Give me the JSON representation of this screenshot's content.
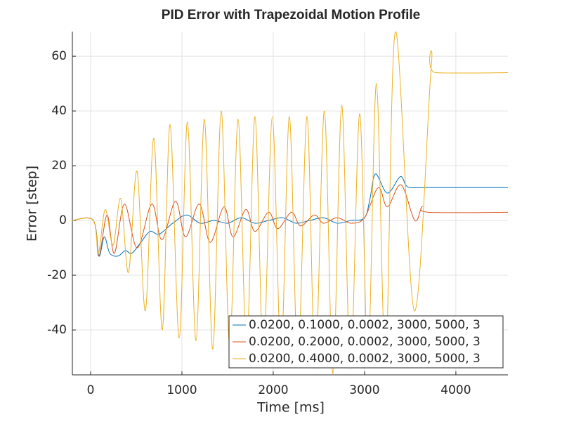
{
  "chart_data": {
    "type": "line",
    "title": "PID Error with Trapezoidal Motion Profile",
    "x_label": "Time [ms]",
    "y_label": "Error [step]",
    "xlim": [
      -200,
      4570
    ],
    "ylim": [
      -56.4,
      69
    ],
    "xticks": [
      0,
      1000,
      2000,
      3000,
      4000
    ],
    "yticks": [
      -40,
      -20,
      0,
      20,
      40,
      60
    ],
    "grid": true,
    "legend": "bottom-right",
    "series": [
      {
        "name": "0.0200, 0.1000, 0.0002, 3000, 5000, 3",
        "color": "#0072bd",
        "x": [
          -200,
          30,
          90,
          150,
          210,
          300,
          380,
          450,
          550,
          650,
          750,
          900,
          1050,
          1200,
          1350,
          1500,
          1650,
          1800,
          1950,
          2100,
          2250,
          2400,
          2550,
          2700,
          2850,
          3000,
          3060,
          3120,
          3250,
          3390,
          3450,
          3500,
          3650,
          4570
        ],
        "values": [
          0,
          0,
          -13,
          -6,
          -12,
          -13,
          -11,
          -12,
          -8,
          -4,
          -5,
          -1,
          2,
          -1,
          0,
          -1,
          1,
          -1,
          0,
          1,
          -1,
          0,
          1,
          -1,
          0,
          1,
          8,
          17,
          10,
          16,
          13,
          12,
          12,
          12
        ]
      },
      {
        "name": "0.0200, 0.2000, 0.0002, 3000, 5000, 3",
        "color": "#d95319",
        "x": [
          -200,
          30,
          90,
          180,
          260,
          370,
          510,
          670,
          780,
          930,
          1040,
          1190,
          1310,
          1460,
          1560,
          1700,
          1800,
          1950,
          2050,
          2200,
          2300,
          2450,
          2550,
          2700,
          2850,
          3000,
          3150,
          3250,
          3400,
          3550,
          3630,
          3700,
          4570
        ],
        "values": [
          0,
          0,
          -13,
          2,
          -12,
          6,
          -10,
          6,
          -7,
          7,
          -6,
          6,
          -8,
          5,
          -6,
          4,
          -4,
          3,
          -3,
          3,
          -2,
          2,
          -1,
          1,
          -1,
          1,
          12,
          5,
          13,
          0,
          5,
          3,
          3
        ]
      },
      {
        "name": "0.0200, 0.4000, 0.0002, 3000, 5000, 3",
        "color": "#edb120",
        "x": [
          -200,
          30,
          85,
          160,
          246,
          330,
          415,
          508,
          600,
          692,
          785,
          870,
          970,
          1060,
          1154,
          1246,
          1338,
          1430,
          1523,
          1615,
          1708,
          1800,
          1892,
          1990,
          2085,
          2177,
          2270,
          2370,
          2460,
          2560,
          2654,
          2750,
          2846,
          2946,
          3038,
          3130,
          3230,
          3338,
          3546,
          3730,
          3780,
          4570
        ],
        "values": [
          0,
          0,
          -12,
          4,
          -9,
          8,
          -19,
          18,
          -33,
          30,
          -40,
          35,
          -43,
          36,
          -44,
          37,
          -47,
          40,
          -46,
          37,
          -47,
          38,
          -49,
          38,
          -49,
          38,
          -52,
          38,
          -54,
          40,
          -56,
          42,
          -54,
          39,
          -50,
          50,
          -51,
          69,
          -33,
          56,
          54,
          54
        ]
      }
    ]
  }
}
